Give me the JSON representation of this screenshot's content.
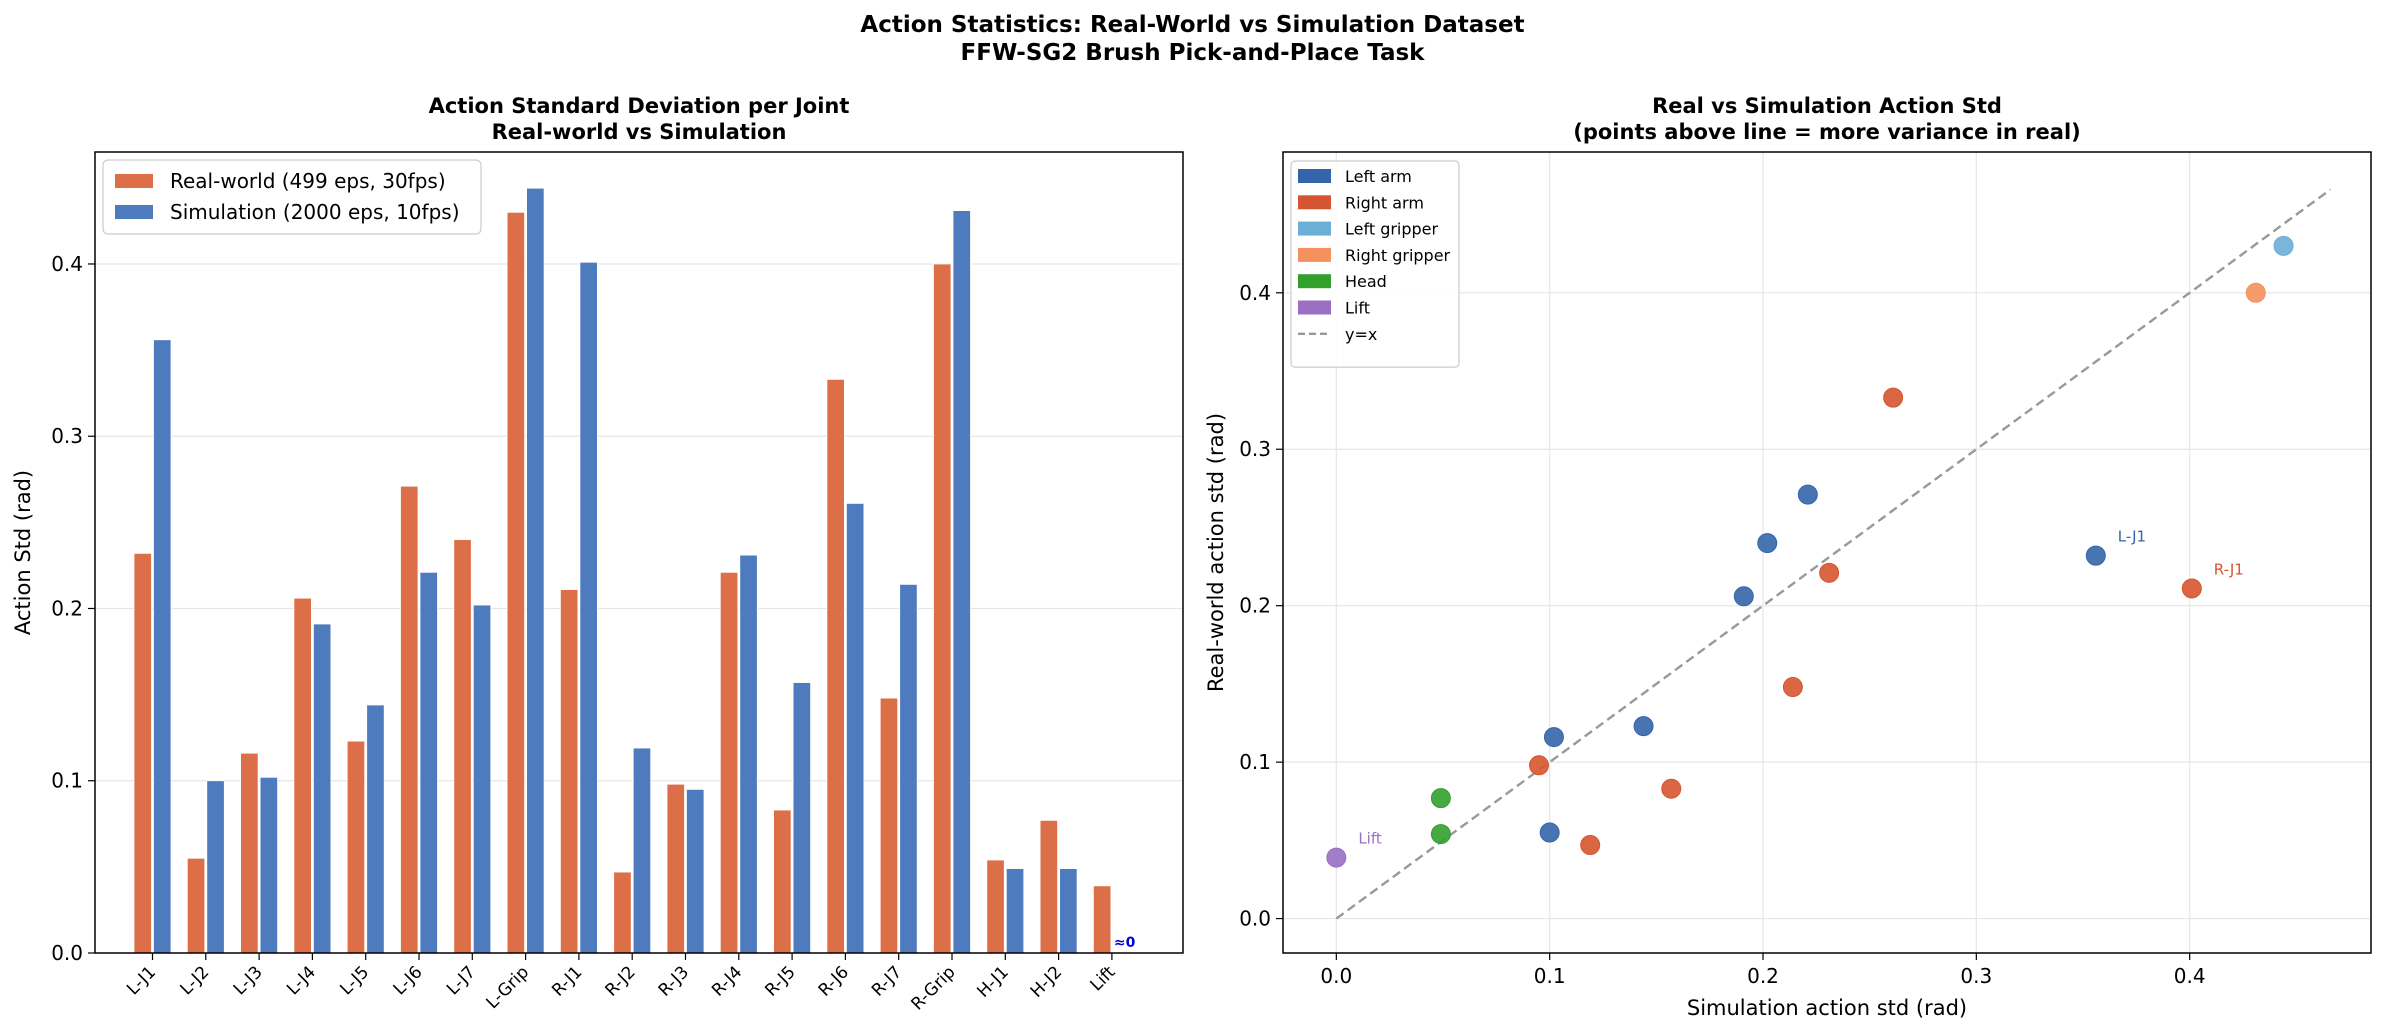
{
  "figure": {
    "suptitle_line1": "Action Statistics: Real-World vs Simulation Dataset",
    "suptitle_line2": "FFW-SG2 Brush Pick-and-Place Task"
  },
  "chart_data": [
    {
      "type": "bar",
      "title_line1": "Action Standard Deviation per Joint",
      "title_line2": "Real-world vs Simulation",
      "xlabel": "",
      "ylabel": "Action Std (rad)",
      "ylim": [
        0,
        0.465
      ],
      "yticks": [
        "0.0",
        "0.1",
        "0.2",
        "0.3",
        "0.4"
      ],
      "grid": "horizontal",
      "legend_position": "upper-left",
      "categories": [
        "L-J1",
        "L-J2",
        "L-J3",
        "L-J4",
        "L-J5",
        "L-J6",
        "L-J7",
        "L-Grip",
        "R-J1",
        "R-J2",
        "R-J3",
        "R-J4",
        "R-J5",
        "R-J6",
        "R-J7",
        "R-Grip",
        "H-J1",
        "H-J2",
        "Lift"
      ],
      "series": [
        {
          "name": "Real-world (499 eps, 30fps)",
          "color": "#DD6F48",
          "values": [
            0.232,
            0.055,
            0.116,
            0.206,
            0.123,
            0.271,
            0.24,
            0.43,
            0.211,
            0.047,
            0.098,
            0.221,
            0.083,
            0.333,
            0.148,
            0.4,
            0.054,
            0.077,
            0.039
          ]
        },
        {
          "name": "Simulation (2000 eps, 10fps)",
          "color": "#4E7BBD",
          "values": [
            0.356,
            0.1,
            0.102,
            0.191,
            0.144,
            0.221,
            0.202,
            0.444,
            0.401,
            0.119,
            0.095,
            0.231,
            0.157,
            0.261,
            0.214,
            0.431,
            0.049,
            0.049,
            0.0
          ]
        }
      ],
      "annotation": {
        "text": "≈0",
        "category": "Lift",
        "color": "#0000dd"
      }
    },
    {
      "type": "scatter",
      "title_line1": "Real vs Simulation Action Std",
      "title_line2": "(points above line = more variance in real)",
      "xlabel": "Simulation action std (rad)",
      "ylabel": "Real-world action std (rad)",
      "xlim": [
        -0.025,
        0.485
      ],
      "ylim": [
        -0.022,
        0.49
      ],
      "xticks": [
        "0.0",
        "0.1",
        "0.2",
        "0.3",
        "0.4"
      ],
      "yticks": [
        "0.0",
        "0.1",
        "0.2",
        "0.3",
        "0.4"
      ],
      "grid": true,
      "legend_position": "upper-left",
      "reference_line": {
        "label": "y=x",
        "from": 0,
        "to": 0.466,
        "color": "#999999"
      },
      "groups": [
        {
          "name": "Left arm",
          "color": "#3465AA",
          "points": [
            [
              0.356,
              0.232
            ],
            [
              0.1,
              0.055
            ],
            [
              0.102,
              0.116
            ],
            [
              0.191,
              0.206
            ],
            [
              0.144,
              0.123
            ],
            [
              0.221,
              0.271
            ],
            [
              0.202,
              0.24
            ]
          ]
        },
        {
          "name": "Right arm",
          "color": "#D65530",
          "points": [
            [
              0.401,
              0.211
            ],
            [
              0.119,
              0.047
            ],
            [
              0.095,
              0.098
            ],
            [
              0.231,
              0.221
            ],
            [
              0.157,
              0.083
            ],
            [
              0.261,
              0.333
            ],
            [
              0.214,
              0.148
            ]
          ]
        },
        {
          "name": "Left gripper",
          "color": "#6BAED6",
          "points": [
            [
              0.444,
              0.43
            ]
          ]
        },
        {
          "name": "Right gripper",
          "color": "#F4915E",
          "points": [
            [
              0.431,
              0.4
            ]
          ]
        },
        {
          "name": "Head",
          "color": "#33A02C",
          "points": [
            [
              0.049,
              0.054
            ],
            [
              0.049,
              0.077
            ]
          ]
        },
        {
          "name": "Lift",
          "color": "#9A6FC4",
          "points": [
            [
              0.0,
              0.039
            ]
          ]
        }
      ],
      "point_labels": [
        {
          "text": "L-J1",
          "x": 0.356,
          "y": 0.232,
          "color": "#3465AA"
        },
        {
          "text": "R-J1",
          "x": 0.401,
          "y": 0.211,
          "color": "#D65530"
        },
        {
          "text": "Lift",
          "x": 0.0,
          "y": 0.039,
          "color": "#9A6FC4"
        }
      ]
    }
  ]
}
